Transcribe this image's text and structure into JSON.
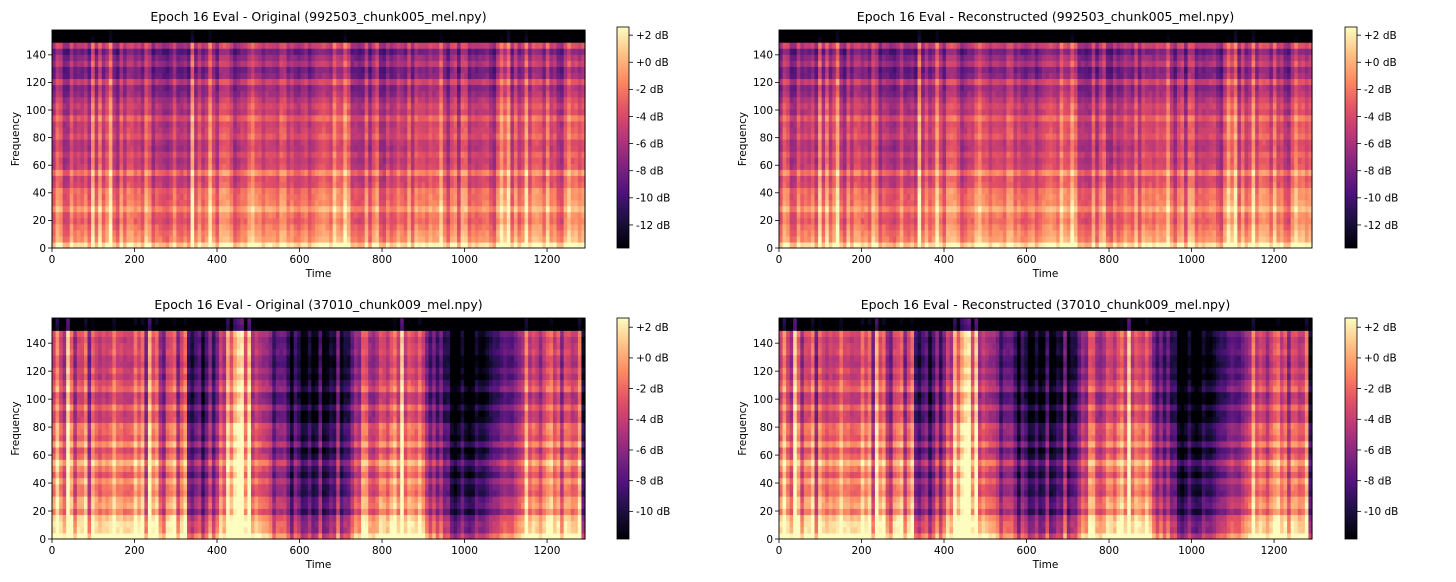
{
  "chart_data": [
    {
      "type": "heatmap",
      "title": "Epoch 16 Eval - Original (992503_chunk005_mel.npy)",
      "xlabel": "Time",
      "ylabel": "Frequency",
      "xlim": [
        0,
        1292
      ],
      "ylim": [
        0,
        158
      ],
      "x_ticks": [
        "0",
        "200",
        "400",
        "600",
        "800",
        "1000",
        "1200"
      ],
      "y_ticks": [
        "0",
        "20",
        "40",
        "60",
        "80",
        "100",
        "120",
        "140"
      ],
      "colorbar": {
        "ticks": [
          "+2 dB",
          "+0 dB",
          "-2 dB",
          "-4 dB",
          "-6 dB",
          "-8 dB",
          "-10 dB",
          "-12 dB"
        ],
        "range": [
          -13.7,
          2.6
        ]
      },
      "colormap": "magma",
      "seed": 11,
      "profile": "dense"
    },
    {
      "type": "heatmap",
      "title": "Epoch 16 Eval - Reconstructed (992503_chunk005_mel.npy)",
      "xlabel": "Time",
      "ylabel": "Frequency",
      "xlim": [
        0,
        1292
      ],
      "ylim": [
        0,
        158
      ],
      "x_ticks": [
        "0",
        "200",
        "400",
        "600",
        "800",
        "1000",
        "1200"
      ],
      "y_ticks": [
        "0",
        "20",
        "40",
        "60",
        "80",
        "100",
        "120",
        "140"
      ],
      "colorbar": {
        "ticks": [
          "+2 dB",
          "+0 dB",
          "-2 dB",
          "-4 dB",
          "-6 dB",
          "-8 dB",
          "-10 dB",
          "-12 dB"
        ],
        "range": [
          -13.7,
          2.6
        ]
      },
      "colormap": "magma",
      "seed": 11,
      "profile": "dense"
    },
    {
      "type": "heatmap",
      "title": "Epoch 16 Eval - Original (37010_chunk009_mel.npy)",
      "xlabel": "Time",
      "ylabel": "Frequency",
      "xlim": [
        0,
        1292
      ],
      "ylim": [
        0,
        158
      ],
      "x_ticks": [
        "0",
        "200",
        "400",
        "600",
        "800",
        "1000",
        "1200"
      ],
      "y_ticks": [
        "0",
        "20",
        "40",
        "60",
        "80",
        "100",
        "120",
        "140"
      ],
      "colorbar": {
        "ticks": [
          "+2 dB",
          "+0 dB",
          "-2 dB",
          "-4 dB",
          "-6 dB",
          "-8 dB",
          "-10 dB"
        ],
        "range": [
          -11.8,
          2.6
        ]
      },
      "colormap": "magma",
      "seed": 37,
      "profile": "sparse"
    },
    {
      "type": "heatmap",
      "title": "Epoch 16 Eval - Reconstructed (37010_chunk009_mel.npy)",
      "xlabel": "Time",
      "ylabel": "Frequency",
      "xlim": [
        0,
        1292
      ],
      "ylim": [
        0,
        158
      ],
      "x_ticks": [
        "0",
        "200",
        "400",
        "600",
        "800",
        "1000",
        "1200"
      ],
      "y_ticks": [
        "0",
        "20",
        "40",
        "60",
        "80",
        "100",
        "120",
        "140"
      ],
      "colorbar": {
        "ticks": [
          "+2 dB",
          "+0 dB",
          "-2 dB",
          "-4 dB",
          "-6 dB",
          "-8 dB",
          "-10 dB"
        ],
        "range": [
          -11.8,
          2.6
        ]
      },
      "colormap": "magma",
      "seed": 37,
      "profile": "sparse"
    }
  ]
}
